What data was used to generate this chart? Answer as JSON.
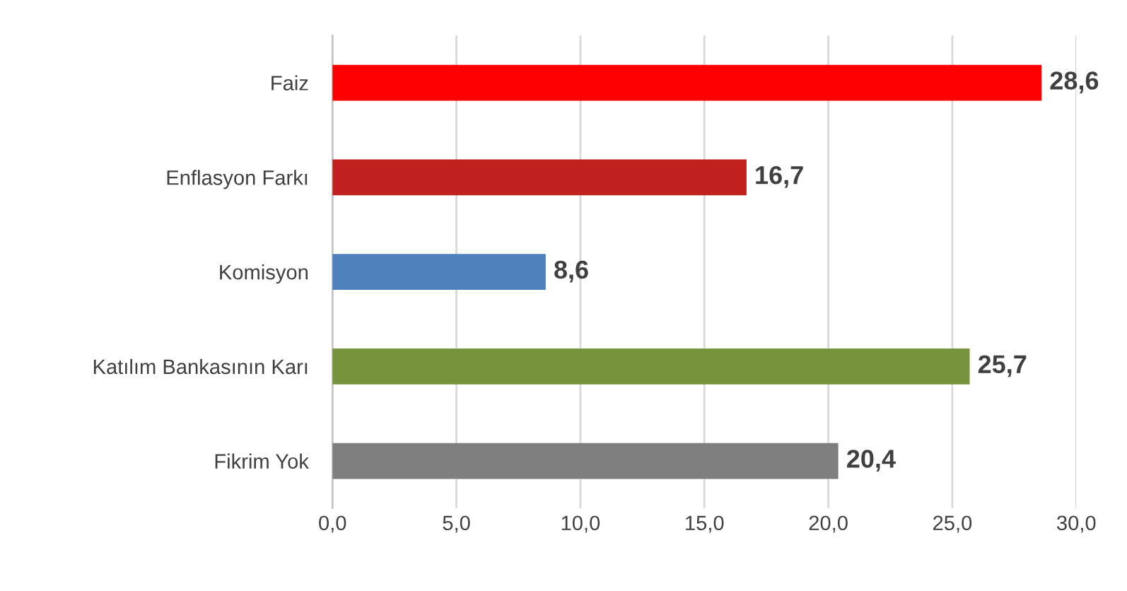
{
  "chart_data": {
    "type": "bar",
    "orientation": "horizontal",
    "categories": [
      "Faiz",
      "Enflasyon Farkı",
      "Komisyon",
      "Katılım Bankasının Karı",
      "Fikrim Yok"
    ],
    "values": [
      28.6,
      16.7,
      8.6,
      25.7,
      20.4
    ],
    "colors": [
      "#ff0000",
      "#c0211f",
      "#4f81bd",
      "#77933c",
      "#7f7f7f"
    ],
    "value_labels": [
      "28,6",
      "16,7",
      "8,6",
      "25,7",
      "20,4"
    ],
    "xlim": [
      0,
      30
    ],
    "xticks": [
      {
        "value": 0,
        "label": "0,0"
      },
      {
        "value": 5,
        "label": "5,0"
      },
      {
        "value": 10,
        "label": "10,0"
      },
      {
        "value": 15,
        "label": "15,0"
      },
      {
        "value": 20,
        "label": "20,0"
      },
      {
        "value": 25,
        "label": "25,0"
      },
      {
        "value": 30,
        "label": "30,0"
      }
    ],
    "grid": "x"
  }
}
